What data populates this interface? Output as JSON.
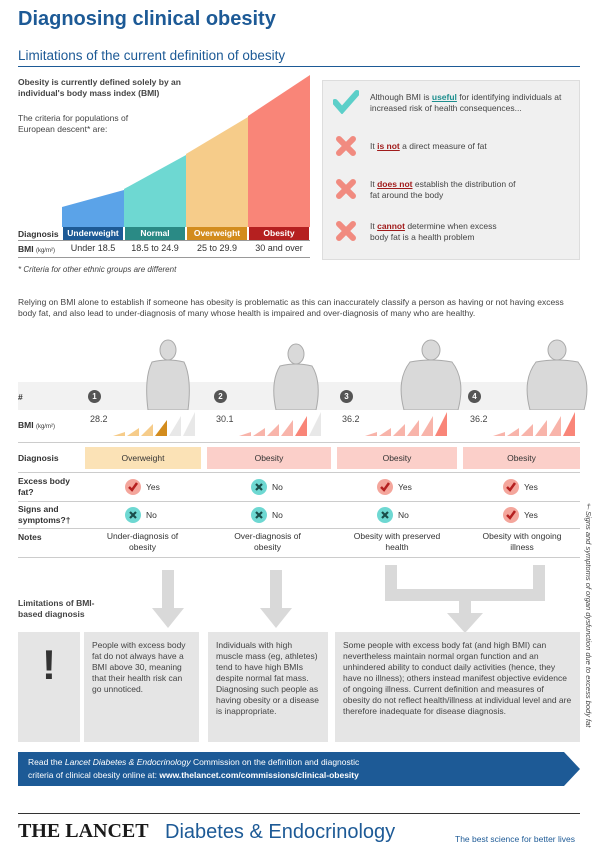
{
  "title": "Diagnosing clinical obesity",
  "subtitle": "Limitations of the current definition of obesity",
  "intro_bold": "Obesity is currently defined solely by an individual's body mass index (BMI)",
  "intro_criteria": "The criteria for populations of European descent* are:",
  "row_diagnosis": "Diagnosis",
  "row_bmi": "BMI",
  "row_bmi_unit": "(kg/m²)",
  "categories": [
    {
      "label": "Underweight",
      "bmi": "Under 18.5",
      "color": "#1d5a96",
      "fill": "#5ba3e8"
    },
    {
      "label": "Normal",
      "bmi": "18.5 to 24.9",
      "color": "#2a8a85",
      "fill": "#6ed8d2"
    },
    {
      "label": "Overweight",
      "bmi": "25 to 29.9",
      "color": "#d38c1d",
      "fill": "#f6cc8a"
    },
    {
      "label": "Obesity",
      "bmi": "30 and over",
      "color": "#b52020",
      "fill": "#f98578"
    }
  ],
  "footnote": "* Criteria for other ethnic groups are different",
  "right_items": [
    {
      "pre": "Although BMI is ",
      "hl": "useful",
      "post": " for identifying individuals at increased risk of health consequences...",
      "icon": "check-icon"
    },
    {
      "pre": "It ",
      "hl": "is not",
      "post": " a direct measure of fat",
      "icon": "cross-icon"
    },
    {
      "pre": "It ",
      "hl": "does not",
      "post": " establish the distribution of fat around the body",
      "icon": "cross-icon"
    },
    {
      "pre": "It ",
      "hl": "cannot",
      "post": " determine when excess body fat is a health problem",
      "icon": "cross-icon"
    }
  ],
  "paragraph": "Relying on BMI alone to establish if someone has obesity is problematic as this can inaccurately classify a person as having or not having excess body fat, and also lead to under-diagnosis of many whose health is impaired and over-diagnosis of many who are healthy.",
  "table": {
    "hash": "#",
    "bmi_label": "BMI",
    "bmi_unit": "(kg/m²)",
    "diagnosis_label": "Diagnosis",
    "excess_label": "Excess body fat?",
    "signs_label": "Signs and symptoms?†",
    "notes_label": "Notes",
    "columns": [
      {
        "num": "1",
        "bmi": "28.2",
        "diagnosis": "Overweight",
        "excess": "Yes",
        "signs": "No",
        "note": "Under-diagnosis of obesity"
      },
      {
        "num": "2",
        "bmi": "30.1",
        "diagnosis": "Obesity",
        "excess": "No",
        "signs": "No",
        "note": "Over-diagnosis of obesity"
      },
      {
        "num": "3",
        "bmi": "36.2",
        "diagnosis": "Obesity",
        "excess": "Yes",
        "signs": "No",
        "note": "Obesity with preserved health"
      },
      {
        "num": "4",
        "bmi": "36.2",
        "diagnosis": "Obesity",
        "excess": "Yes",
        "signs": "Yes",
        "note": "Obesity with ongoing illness"
      }
    ]
  },
  "side_note": "†Signs and symptoms of organ dysfunction due to excess body fat",
  "limitations_label": "Limitations of BMI-based diagnosis",
  "exclamation": "!",
  "boxes": [
    "People with excess body fat do not always have a BMI above 30, meaning that their health risk can go unnoticed.",
    "Individuals with high muscle mass (eg, athletes) tend to have high BMIs despite normal fat mass. Diagnosing such people as having obesity or a disease is inappropriate.",
    "Some people with excess body fat (and high BMI) can nevertheless maintain normal organ function and an unhindered ability to conduct daily activities (hence, they have no illness); others instead manifest objective evidence of ongoing illness. Current definition and measures of obesity do not reflect health/illness at individual level and are therefore inadequate for disease diagnosis."
  ],
  "banner": {
    "line1_pre": "Read the ",
    "line1_italic": "Lancet Diabetes & Endocrinology",
    "line1_post": " Commission on the definition and diagnostic",
    "line2_pre": "criteria of clinical obesity online at: ",
    "line2_url": "www.thelancet.com/commissions/clinical-obesity"
  },
  "footer": {
    "brand": "THE LANCET",
    "journal": "Diabetes & Endocrinology",
    "tagline": "The best science for better lives"
  }
}
